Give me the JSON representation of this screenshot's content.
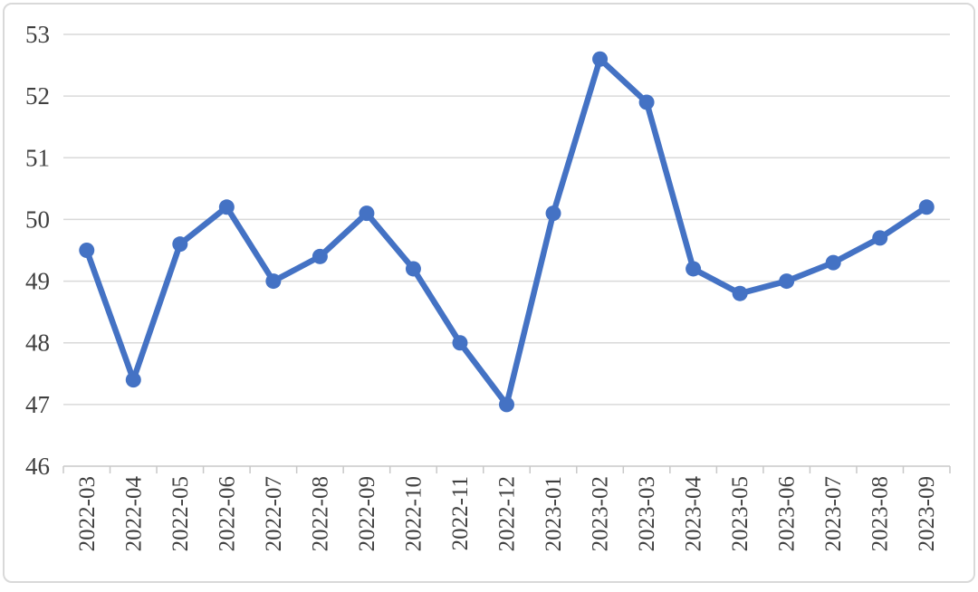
{
  "chart_data": {
    "type": "line",
    "title": "",
    "xlabel": "",
    "ylabel": "",
    "categories": [
      "2022-03",
      "2022-04",
      "2022-05",
      "2022-06",
      "2022-07",
      "2022-08",
      "2022-09",
      "2022-10",
      "2022-11",
      "2022-12",
      "2023-01",
      "2023-02",
      "2023-03",
      "2023-04",
      "2023-05",
      "2023-06",
      "2023-07",
      "2023-08",
      "2023-09"
    ],
    "values": [
      49.5,
      47.4,
      49.6,
      50.2,
      49.0,
      49.4,
      50.1,
      49.2,
      48.0,
      47.0,
      50.1,
      52.6,
      51.9,
      49.2,
      48.8,
      49.0,
      49.3,
      49.7,
      50.2
    ],
    "ylim": [
      46,
      53
    ],
    "yticks": [
      46,
      47,
      48,
      49,
      50,
      51,
      52,
      53
    ],
    "grid": true,
    "legend": false,
    "marker": "circle",
    "line_color": "#4472C4"
  },
  "style": {
    "gridline_color": "#d9d9d9",
    "axis_color": "#c8c8c8",
    "tick_color": "#c8c8c8",
    "label_color": "#3f3f3f",
    "card_border_color": "#d9d9d9",
    "background": "#ffffff"
  }
}
